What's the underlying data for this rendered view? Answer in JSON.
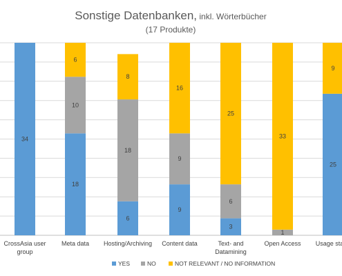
{
  "chart_data": {
    "type": "bar",
    "stacked": true,
    "title": "Sonstige Datenbanken,",
    "title_suffix": " inkl. Wörterbücher",
    "subtitle": "(17 Produkte)",
    "categories": [
      [
        "CrossAsia user",
        "group"
      ],
      [
        "Meta data"
      ],
      [
        "Hosting/Archiving"
      ],
      [
        "Content data"
      ],
      [
        "Text- and",
        "Datamining"
      ],
      [
        "Open Access"
      ],
      [
        "Usage stat..."
      ]
    ],
    "series": [
      {
        "name": "YES",
        "color": "#5B9BD5",
        "values": [
          34,
          18,
          6,
          9,
          3,
          0,
          25
        ]
      },
      {
        "name": "NO",
        "color": "#A5A5A5",
        "values": [
          0,
          10,
          18,
          9,
          6,
          1,
          0
        ]
      },
      {
        "name": "NOT RELEVANT / NO INFORMATION",
        "color": "#FFC000",
        "values": [
          0,
          6,
          8,
          16,
          25,
          33,
          9
        ]
      }
    ],
    "ylim": [
      0,
      34
    ],
    "grid": true,
    "legend_position": "bottom"
  }
}
